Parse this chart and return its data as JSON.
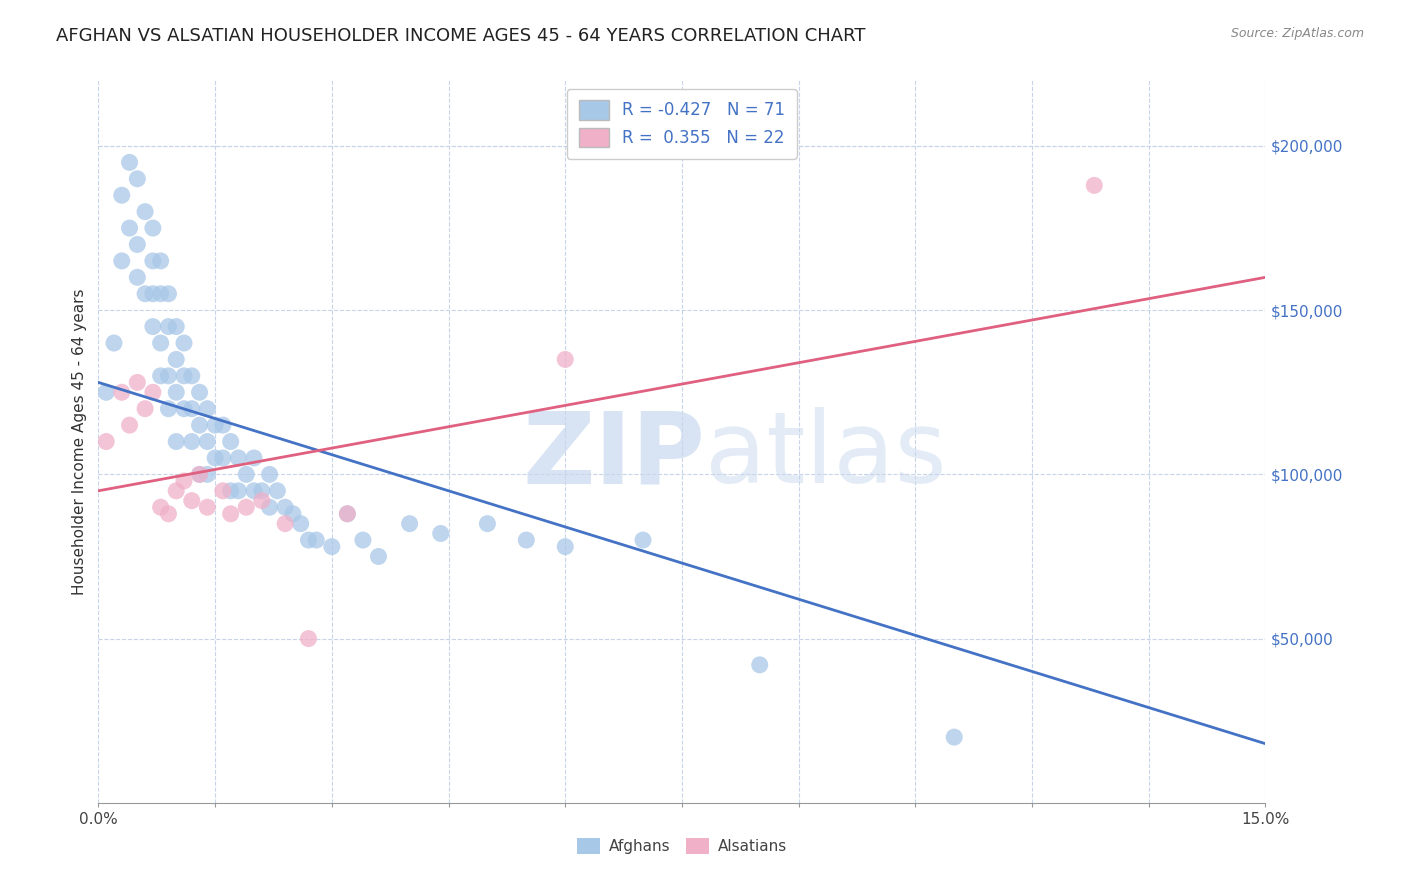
{
  "title": "AFGHAN VS ALSATIAN HOUSEHOLDER INCOME AGES 45 - 64 YEARS CORRELATION CHART",
  "source": "Source: ZipAtlas.com",
  "ylabel": "Householder Income Ages 45 - 64 years",
  "xlim": [
    0.0,
    0.15
  ],
  "ylim": [
    0,
    220000
  ],
  "xtick_positions": [
    0.0,
    0.015,
    0.03,
    0.045,
    0.06,
    0.075,
    0.09,
    0.105,
    0.12,
    0.135,
    0.15
  ],
  "xticklabels_show": {
    "0.0": "0.0%",
    "0.15": "15.0%"
  },
  "yticks_right": [
    50000,
    100000,
    150000,
    200000
  ],
  "ytick_labels_right": [
    "$50,000",
    "$100,000",
    "$150,000",
    "$200,000"
  ],
  "legend_label_afghans": "Afghans",
  "legend_label_alsatians": "Alsatians",
  "blue_color": "#a8c8e8",
  "pink_color": "#f0b0c8",
  "blue_line_color": "#4472c4",
  "pink_line_color": "#e06080",
  "watermark_zip": "ZIP",
  "watermark_atlas": "atlas",
  "background_color": "#ffffff",
  "grid_color": "#c8d4e8",
  "title_fontsize": 13,
  "axis_fontsize": 11,
  "blue_scatter_x": [
    0.001,
    0.002,
    0.003,
    0.003,
    0.004,
    0.004,
    0.005,
    0.005,
    0.005,
    0.006,
    0.006,
    0.007,
    0.007,
    0.007,
    0.007,
    0.008,
    0.008,
    0.008,
    0.008,
    0.009,
    0.009,
    0.009,
    0.009,
    0.01,
    0.01,
    0.01,
    0.01,
    0.011,
    0.011,
    0.011,
    0.012,
    0.012,
    0.012,
    0.013,
    0.013,
    0.013,
    0.014,
    0.014,
    0.014,
    0.015,
    0.015,
    0.016,
    0.016,
    0.017,
    0.017,
    0.018,
    0.018,
    0.019,
    0.02,
    0.02,
    0.021,
    0.022,
    0.022,
    0.023,
    0.024,
    0.025,
    0.026,
    0.027,
    0.028,
    0.03,
    0.032,
    0.034,
    0.036,
    0.04,
    0.044,
    0.05,
    0.055,
    0.06,
    0.07,
    0.085,
    0.11
  ],
  "blue_scatter_y": [
    125000,
    140000,
    165000,
    185000,
    175000,
    195000,
    170000,
    190000,
    160000,
    180000,
    155000,
    175000,
    165000,
    155000,
    145000,
    165000,
    155000,
    140000,
    130000,
    155000,
    145000,
    130000,
    120000,
    145000,
    135000,
    125000,
    110000,
    140000,
    130000,
    120000,
    130000,
    120000,
    110000,
    125000,
    115000,
    100000,
    120000,
    110000,
    100000,
    115000,
    105000,
    115000,
    105000,
    110000,
    95000,
    105000,
    95000,
    100000,
    105000,
    95000,
    95000,
    100000,
    90000,
    95000,
    90000,
    88000,
    85000,
    80000,
    80000,
    78000,
    88000,
    80000,
    75000,
    85000,
    82000,
    85000,
    80000,
    78000,
    80000,
    42000,
    20000
  ],
  "pink_scatter_x": [
    0.001,
    0.003,
    0.004,
    0.005,
    0.006,
    0.007,
    0.008,
    0.009,
    0.01,
    0.011,
    0.012,
    0.013,
    0.014,
    0.016,
    0.017,
    0.019,
    0.021,
    0.024,
    0.027,
    0.032,
    0.06,
    0.128
  ],
  "pink_scatter_y": [
    110000,
    125000,
    115000,
    128000,
    120000,
    125000,
    90000,
    88000,
    95000,
    98000,
    92000,
    100000,
    90000,
    95000,
    88000,
    90000,
    92000,
    85000,
    50000,
    88000,
    135000,
    188000
  ],
  "blue_trend_x": [
    0.0,
    0.15
  ],
  "blue_trend_y": [
    128000,
    18000
  ],
  "pink_trend_x": [
    0.0,
    0.15
  ],
  "pink_trend_y": [
    95000,
    160000
  ]
}
